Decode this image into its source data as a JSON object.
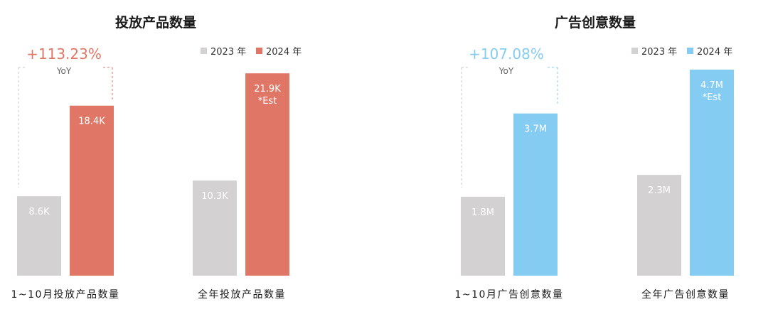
{
  "colors": {
    "bar_2023": "#d3d1d1",
    "red_2024": "#e07766",
    "blue_2024": "#85ccf2"
  },
  "chart_data": [
    {
      "type": "bar",
      "title": "投放产品数量",
      "legend": [
        "2023 年",
        "2024 年"
      ],
      "accent_color": "#e07766",
      "yoy": {
        "value": "+113.23%",
        "label": "YoY"
      },
      "groups": [
        {
          "category": "1~10月投放产品数量",
          "bars": [
            {
              "series": "2023 年",
              "value": 8.6,
              "label": "8.6K"
            },
            {
              "series": "2024 年",
              "value": 18.4,
              "label": "18.4K"
            }
          ]
        },
        {
          "category": "全年投放产品数量",
          "bars": [
            {
              "series": "2023 年",
              "value": 10.3,
              "label": "10.3K"
            },
            {
              "series": "2024 年",
              "value": 21.9,
              "label": "21.9K",
              "note": "*Est"
            }
          ]
        }
      ],
      "ylim": [
        0,
        22.3
      ]
    },
    {
      "type": "bar",
      "title": "广告创意数量",
      "legend": [
        "2023 年",
        "2024 年"
      ],
      "accent_color": "#85ccf2",
      "yoy": {
        "value": "+107.08%",
        "label": "YoY"
      },
      "groups": [
        {
          "category": "1~10月广告创意数量",
          "bars": [
            {
              "series": "2023 年",
              "value": 1.8,
              "label": "1.8M"
            },
            {
              "series": "2024 年",
              "value": 3.7,
              "label": "3.7M"
            }
          ]
        },
        {
          "category": "全年广告创意数量",
          "bars": [
            {
              "series": "2023 年",
              "value": 2.3,
              "label": "2.3M"
            },
            {
              "series": "2024 年",
              "value": 4.7,
              "label": "4.7M",
              "note": "*Est"
            }
          ]
        }
      ],
      "ylim": [
        0,
        4.7
      ]
    }
  ]
}
